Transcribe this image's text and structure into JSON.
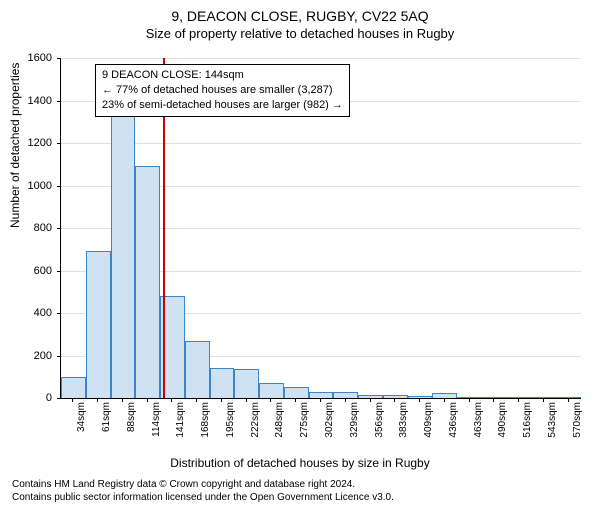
{
  "title": "9, DEACON CLOSE, RUGBY, CV22 5AQ",
  "subtitle": "Size of property relative to detached houses in Rugby",
  "ylabel": "Number of detached properties",
  "xlabel": "Distribution of detached houses by size in Rugby",
  "chart": {
    "type": "histogram",
    "ylim": [
      0,
      1600
    ],
    "ytick_step": 200,
    "bar_fill": "#cfe2f3",
    "bar_stroke": "#3d85c6",
    "grid_color": "#e0e0e0",
    "background_color": "#ffffff",
    "ref_line_color": "#cc0000",
    "bar_width_ratio": 1.0,
    "categories": [
      "34sqm",
      "61sqm",
      "88sqm",
      "114sqm",
      "141sqm",
      "168sqm",
      "195sqm",
      "222sqm",
      "248sqm",
      "275sqm",
      "302sqm",
      "329sqm",
      "356sqm",
      "383sqm",
      "409sqm",
      "436sqm",
      "463sqm",
      "490sqm",
      "516sqm",
      "543sqm",
      "570sqm"
    ],
    "values": [
      100,
      690,
      1400,
      1090,
      480,
      270,
      140,
      135,
      70,
      50,
      30,
      30,
      15,
      15,
      10,
      25,
      5,
      5,
      0,
      0,
      0
    ],
    "ref_line_index": 4.1,
    "info_box": {
      "lines": [
        "9 DEACON CLOSE: 144sqm",
        "← 77% of detached houses are smaller (3,287)",
        "23% of semi-detached houses are larger (982) →"
      ]
    }
  },
  "footer": {
    "line1": "Contains HM Land Registry data © Crown copyright and database right 2024.",
    "line2": "Contains public sector information licensed under the Open Government Licence v3.0."
  },
  "fonts": {
    "title_size": 14,
    "subtitle_size": 13,
    "axis_label_size": 12,
    "tick_size": 11,
    "xtick_size": 10,
    "info_size": 11,
    "footer_size": 10
  }
}
